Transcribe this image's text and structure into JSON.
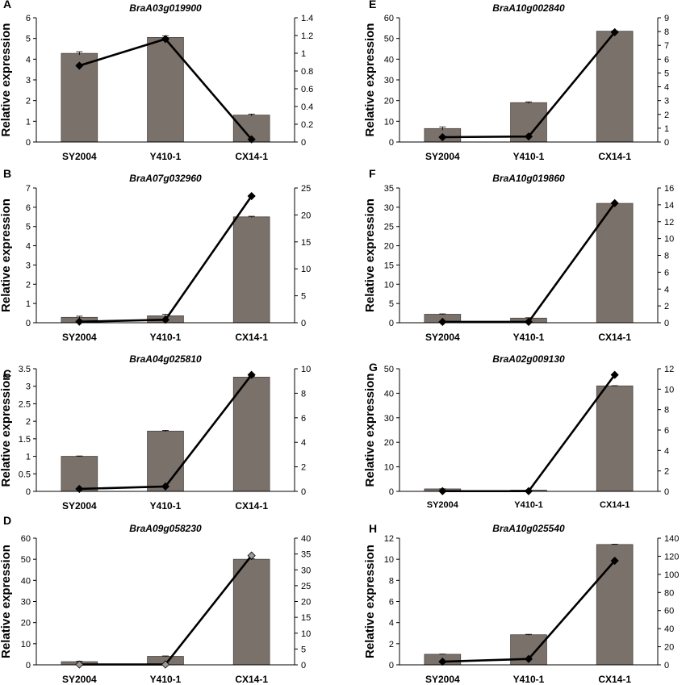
{
  "figure": {
    "panels": [
      "A",
      "B",
      "C",
      "D",
      "E",
      "F",
      "G",
      "H"
    ]
  },
  "chart_data": [
    {
      "panel": "A",
      "type": "bar",
      "title": "BraA03g019900",
      "ylabel": "Relative expression",
      "categories": [
        "SY2004",
        "Y410-1",
        "CX14-1"
      ],
      "ylim": [
        0,
        6
      ],
      "yticks": [
        0,
        1,
        2,
        3,
        4,
        5,
        6
      ],
      "y2lim": [
        0,
        1.4
      ],
      "y2ticks": [
        "0",
        "0.2",
        "0.4",
        "0.6",
        "0.8",
        "1",
        "1.2",
        "1.4"
      ],
      "series": [
        {
          "kind": "bar",
          "values": [
            4.28,
            5.05,
            1.3
          ],
          "errors": [
            0.08,
            0.08,
            0.05
          ]
        },
        {
          "kind": "line",
          "axis": "right",
          "values": [
            0.86,
            1.16,
            0.03
          ]
        }
      ]
    },
    {
      "panel": "B",
      "type": "bar",
      "title": "BraA07g032960",
      "ylabel": "Relative expression",
      "categories": [
        "SY2004",
        "Y410-1",
        "CX14-1"
      ],
      "ylim": [
        0,
        7
      ],
      "yticks": [
        0,
        1,
        2,
        3,
        4,
        5,
        6,
        7
      ],
      "y2lim": [
        0,
        25
      ],
      "y2ticks": [
        "0",
        "5",
        "10",
        "15",
        "20",
        "25"
      ],
      "series": [
        {
          "kind": "bar",
          "values": [
            0.28,
            0.36,
            5.5
          ],
          "errors": [
            0.06,
            0.08,
            0.03
          ]
        },
        {
          "kind": "line",
          "axis": "right",
          "values": [
            0.2,
            0.55,
            23.5
          ]
        }
      ]
    },
    {
      "panel": "C",
      "type": "bar",
      "title": "BraA04g025810",
      "ylabel": "Relative expression",
      "categories": [
        "SY2004",
        "Y410-1",
        "CX14-1"
      ],
      "ylim": [
        0,
        3.5
      ],
      "yticks": [
        "0",
        "0.5",
        "1",
        "1.5",
        "2",
        "2.5",
        "3",
        "3.5"
      ],
      "y2lim": [
        0,
        10
      ],
      "y2ticks": [
        "0",
        "2",
        "4",
        "6",
        "8",
        "10"
      ],
      "series": [
        {
          "kind": "bar",
          "values": [
            1.0,
            1.72,
            3.26
          ],
          "errors": [
            0.01,
            0.02,
            0.02
          ]
        },
        {
          "kind": "line",
          "axis": "right",
          "values": [
            0.2,
            0.4,
            9.5
          ]
        }
      ]
    },
    {
      "panel": "D",
      "type": "bar",
      "title": "BraA09g058230",
      "ylabel": "Relative expression",
      "categories": [
        "SY2004",
        "Y410-1",
        "CX14-1"
      ],
      "ylim": [
        0,
        60
      ],
      "yticks": [
        0,
        10,
        20,
        30,
        40,
        50,
        60
      ],
      "y2lim": [
        0,
        40
      ],
      "y2ticks": [
        "0",
        "5",
        "10",
        "15",
        "20",
        "25",
        "30",
        "35",
        "40"
      ],
      "series": [
        {
          "kind": "bar",
          "values": [
            1.5,
            4.0,
            50.0
          ],
          "errors": [
            0.2,
            0.2,
            0.3
          ]
        },
        {
          "kind": "line",
          "axis": "right",
          "values": [
            0.1,
            0.1,
            34.5
          ]
        }
      ]
    },
    {
      "panel": "E",
      "type": "bar",
      "title": "BraA10g002840",
      "ylabel": "Relative expression",
      "categories": [
        "SY2004",
        "Y410-1",
        "CX14-1"
      ],
      "ylim": [
        0,
        60
      ],
      "yticks": [
        0,
        10,
        20,
        30,
        40,
        50,
        60
      ],
      "y2lim": [
        0,
        9
      ],
      "y2ticks": [
        "0",
        "1",
        "2",
        "3",
        "4",
        "5",
        "6",
        "7",
        "8",
        "9"
      ],
      "series": [
        {
          "kind": "bar",
          "values": [
            6.5,
            19.0,
            53.5
          ],
          "errors": [
            0.8,
            0.4,
            0.2
          ]
        },
        {
          "kind": "line",
          "axis": "right",
          "values": [
            0.35,
            0.4,
            7.95
          ]
        }
      ]
    },
    {
      "panel": "F",
      "type": "bar",
      "title": "BraA10g019860",
      "ylabel": "Relative expression",
      "categories": [
        "SY2004",
        "Y410-1",
        "CX14-1"
      ],
      "ylim": [
        0,
        35
      ],
      "yticks": [
        0,
        5,
        10,
        15,
        20,
        25,
        30,
        35
      ],
      "y2lim": [
        0,
        16
      ],
      "y2ticks": [
        "0",
        "2",
        "4",
        "6",
        "8",
        "10",
        "12",
        "14",
        "16"
      ],
      "series": [
        {
          "kind": "bar",
          "values": [
            2.2,
            1.2,
            31.0
          ],
          "errors": [
            0.1,
            0.1,
            0.1
          ]
        },
        {
          "kind": "line",
          "axis": "right",
          "values": [
            0.1,
            0.1,
            14.2
          ]
        }
      ]
    },
    {
      "panel": "G",
      "type": "bar",
      "title": "BraA02g009130",
      "ylabel": "Relative expression",
      "categories": [
        "SY2004",
        "Y410-1",
        "CX14-1"
      ],
      "ylim": [
        0,
        50
      ],
      "yticks": [
        0,
        10,
        20,
        30,
        40,
        50
      ],
      "y2lim": [
        0,
        12
      ],
      "y2ticks": [
        "0",
        "2",
        "4",
        "6",
        "8",
        "10",
        "12"
      ],
      "series": [
        {
          "kind": "bar",
          "values": [
            1.0,
            0.5,
            43.0
          ],
          "errors": [
            0.05,
            0.05,
            0.1
          ]
        },
        {
          "kind": "line",
          "axis": "right",
          "values": [
            0.02,
            0.02,
            11.4
          ]
        }
      ]
    },
    {
      "panel": "H",
      "type": "bar",
      "title": "BraA10g025540",
      "ylabel": "Relative expression",
      "categories": [
        "SY2004",
        "Y410-1",
        "CX14-1"
      ],
      "ylim": [
        0,
        12
      ],
      "yticks": [
        0,
        2,
        4,
        6,
        8,
        10,
        12
      ],
      "y2lim": [
        0,
        140
      ],
      "y2ticks": [
        "0",
        "20",
        "40",
        "60",
        "80",
        "100",
        "120",
        "140"
      ],
      "series": [
        {
          "kind": "bar",
          "values": [
            1.0,
            2.85,
            11.4
          ],
          "errors": [
            0.02,
            0.04,
            0.03
          ]
        },
        {
          "kind": "line",
          "axis": "right",
          "values": [
            3.5,
            6.5,
            115.0
          ]
        }
      ]
    }
  ]
}
